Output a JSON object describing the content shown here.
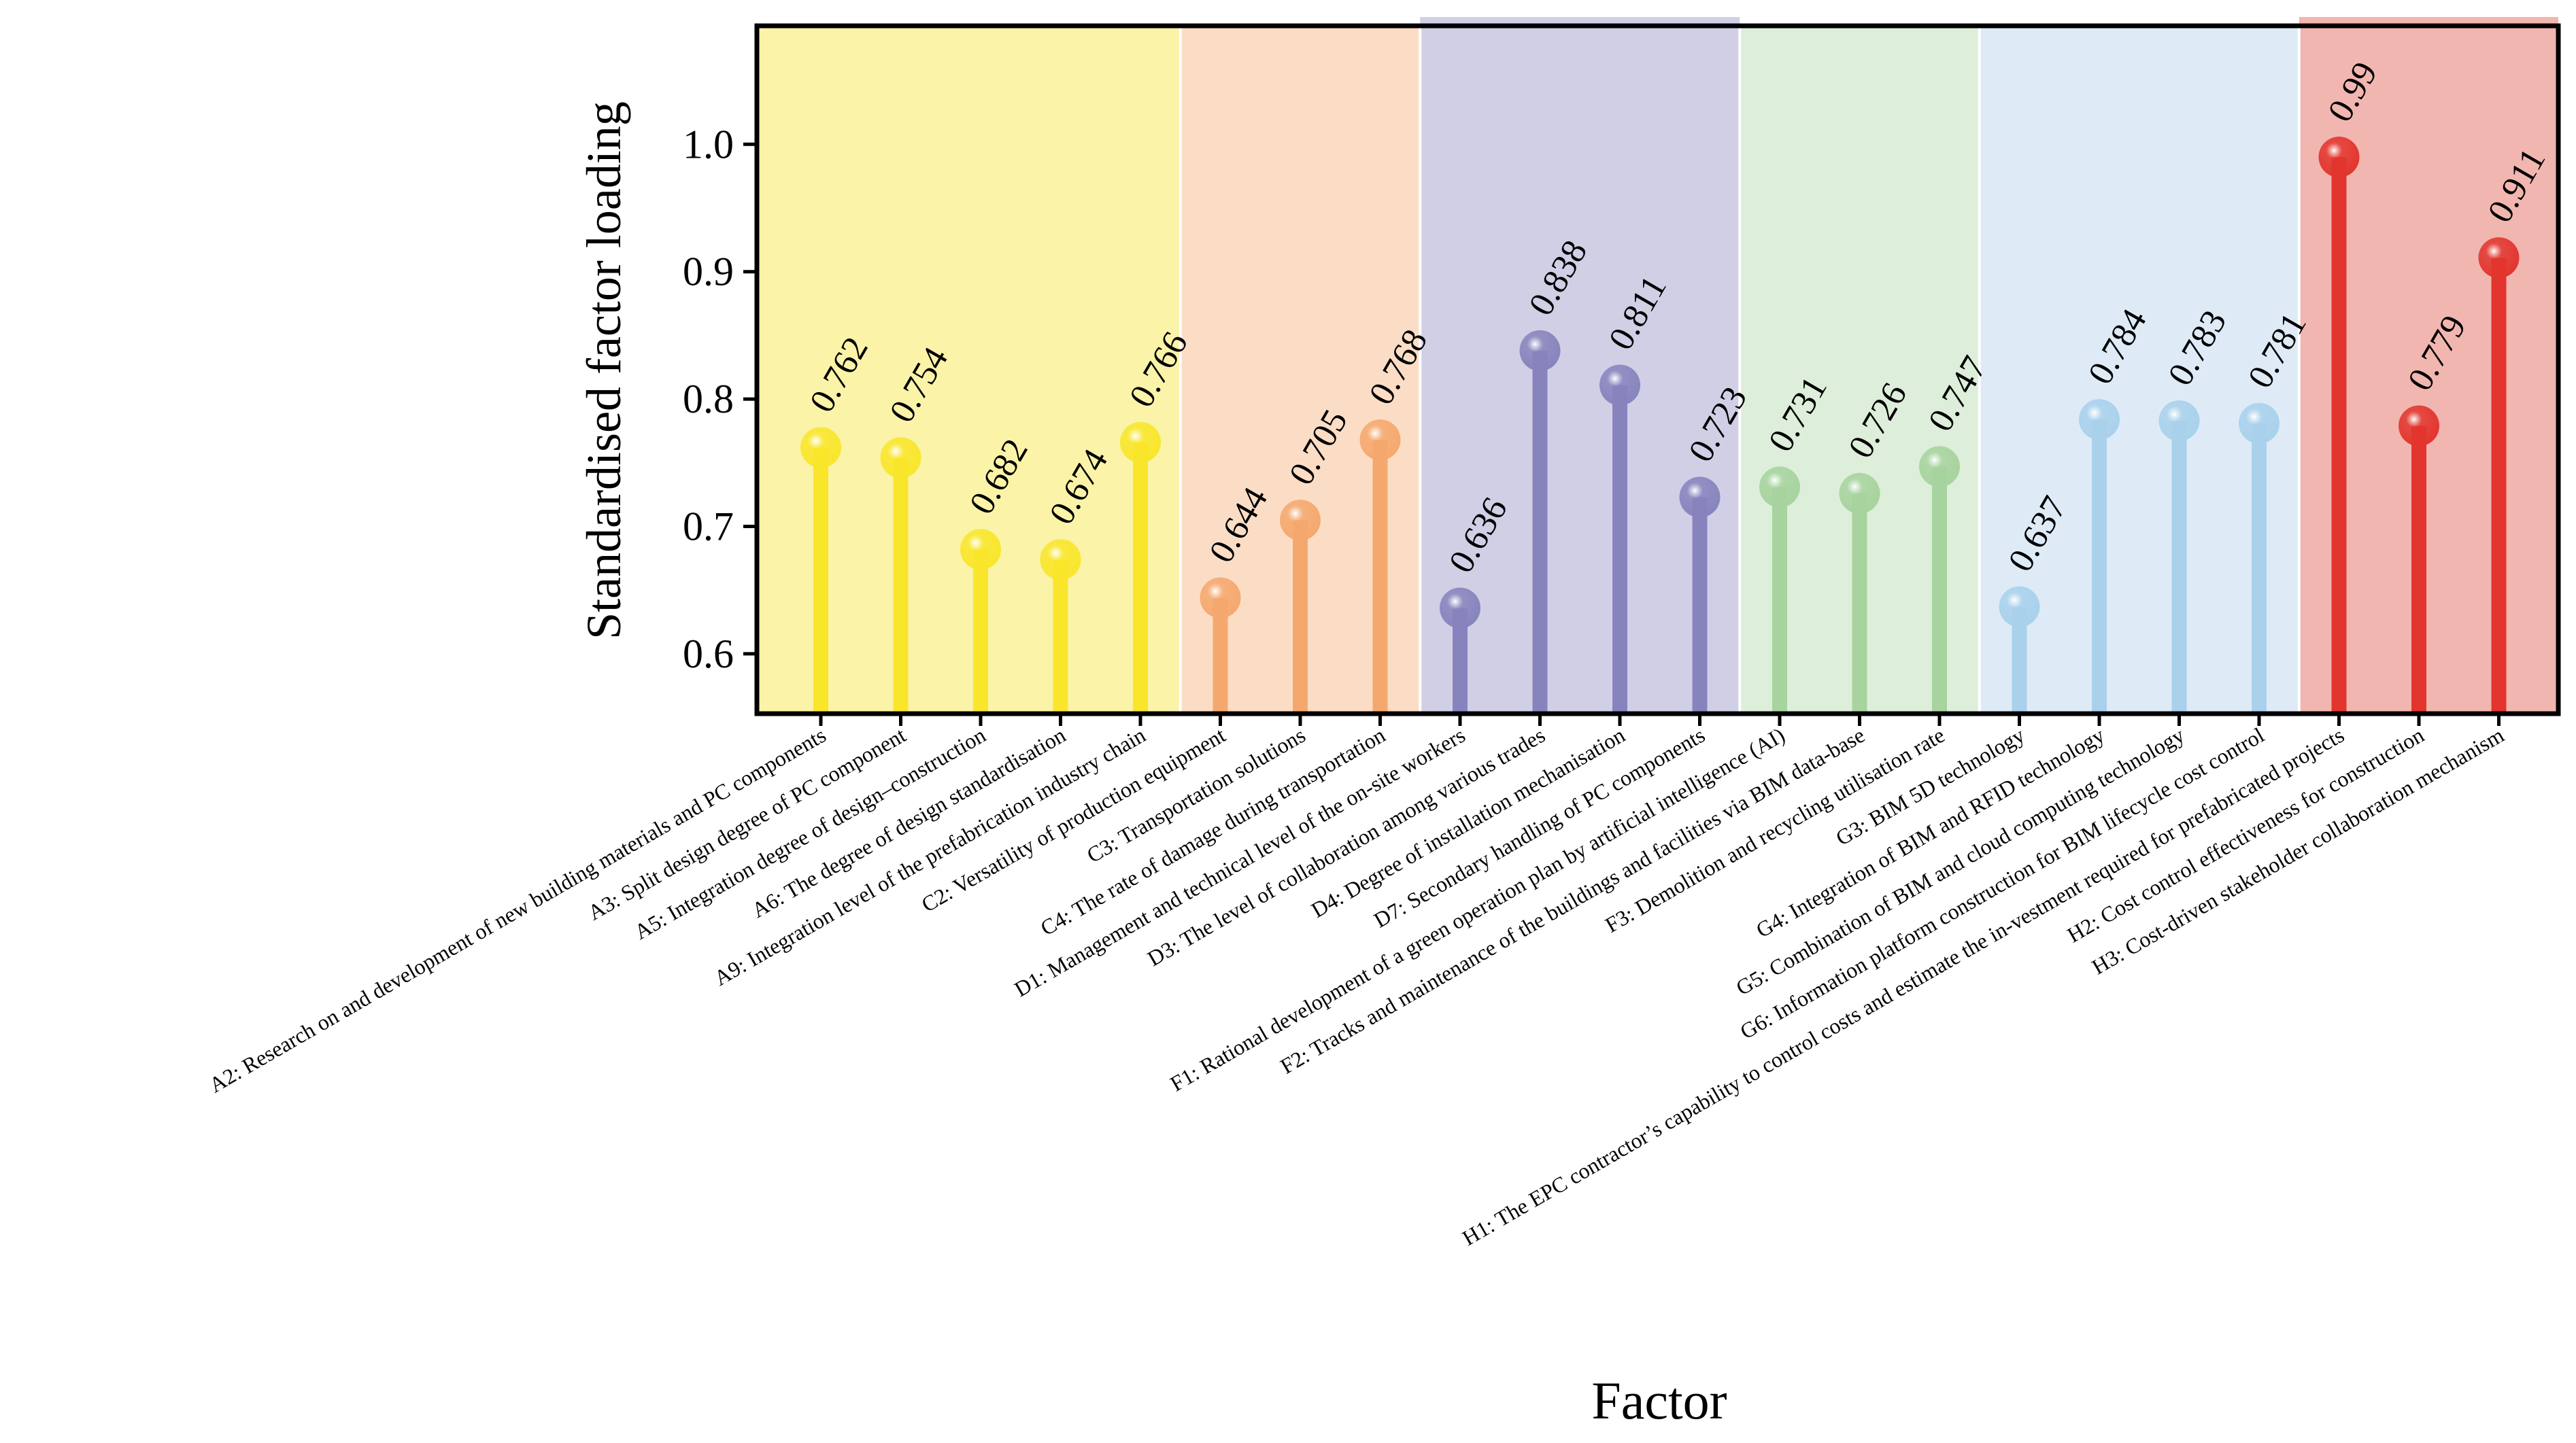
{
  "chart_data": {
    "type": "lollipop",
    "title": "",
    "xlabel": "Factor",
    "ylabel": "Standardised factor loading",
    "ylim": [
      0.553,
      1.093
    ],
    "yticks": [
      0.6,
      0.7,
      0.8,
      0.9,
      1.0
    ],
    "ytick_labels": [
      "0.6",
      "0.7",
      "0.8",
      "0.9",
      "1.0"
    ],
    "grid": false,
    "groups": [
      {
        "name": "A",
        "start": 0,
        "end": 4,
        "band_color": "#FAF3A8",
        "stem_color": "#F9E62B",
        "head_color": "#F9E62B"
      },
      {
        "name": "C",
        "start": 5,
        "end": 7,
        "band_color": "#FBDDC6",
        "stem_color": "#F5A86E",
        "head_color": "#F5A86E"
      },
      {
        "name": "D",
        "start": 8,
        "end": 11,
        "band_color": "#D1CFE6",
        "stem_color": "#8784BD",
        "head_color": "#8784BD"
      },
      {
        "name": "F",
        "start": 12,
        "end": 14,
        "band_color": "#DDEEDA",
        "stem_color": "#A7D39E",
        "head_color": "#A7D39E"
      },
      {
        "name": "G",
        "start": 15,
        "end": 18,
        "band_color": "#DEEBF6",
        "stem_color": "#A9D1EC",
        "head_color": "#A9D1EC"
      },
      {
        "name": "H",
        "start": 19,
        "end": 21,
        "band_color": "#F2B6B0",
        "stem_color": "#E2352E",
        "head_color": "#E2352E"
      }
    ],
    "categories": [
      "A2: Research on and development of new building materials and PC components",
      "A3: Split design degree of PC component",
      "A5: Integration degree of design–construction",
      "A6: The degree of design standardisation",
      "A9: Integration level of the prefabrication industry chain",
      "C2: Versatility of production equipment",
      "C3: Transportation solutions",
      "C4: The rate of damage during transportation",
      "D1: Management and technical level of the on-site workers",
      "D3: The level of collaboration among various trades",
      "D4: Degree of installation mechanisation",
      "D7: Secondary handling of PC components",
      "F1: Rational development of a green operation plan by artificial intelligence (AI)",
      "F2: Tracks and maintenance of the buildings and facilities via BIM data-base",
      "F3: Demolition and recycling utilisation rate",
      "G3: BIM 5D technology",
      "G4: Integration of BIM and RFID technology",
      "G5: Combination of BIM and cloud computing technology",
      "G6: Information platform construction for BIM lifecycle cost control",
      "H1: The EPC contractor’s capability to control costs and estimate the in-vestment required for prefabricated projects",
      "H2: Cost control effectiveness for construction",
      "H3: Cost-driven stakeholder collaboration mechanism"
    ],
    "values": [
      0.762,
      0.754,
      0.682,
      0.674,
      0.766,
      0.644,
      0.705,
      0.768,
      0.636,
      0.838,
      0.811,
      0.723,
      0.731,
      0.726,
      0.747,
      0.637,
      0.784,
      0.783,
      0.781,
      0.99,
      0.779,
      0.911
    ],
    "value_labels": [
      "0.762",
      "0.754",
      "0.682",
      "0.674",
      "0.766",
      "0.644",
      "0.705",
      "0.768",
      "0.636",
      "0.838",
      "0.811",
      "0.723",
      "0.731",
      "0.726",
      "0.747",
      "0.637",
      "0.784",
      "0.783",
      "0.781",
      "0.99",
      "0.779",
      "0.911"
    ]
  }
}
